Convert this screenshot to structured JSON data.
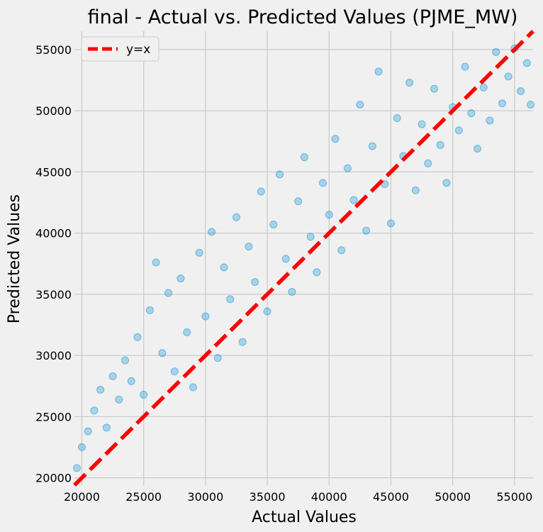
{
  "chart_data": {
    "type": "scatter",
    "title": "final - Actual vs. Predicted Values (PJME_MW)",
    "xlabel": "Actual Values",
    "ylabel": "Predicted Values",
    "xlim": [
      19400,
      56500
    ],
    "ylim": [
      19400,
      56500
    ],
    "xticks": [
      20000,
      25000,
      30000,
      35000,
      40000,
      45000,
      50000,
      55000
    ],
    "yticks": [
      20000,
      25000,
      30000,
      35000,
      40000,
      45000,
      50000,
      55000
    ],
    "grid": true,
    "legend": {
      "position": "top-left",
      "entries": [
        "y=x"
      ]
    },
    "series": [
      {
        "kind": "scatter",
        "color": "#008fd5",
        "opacity": 0.3,
        "points": [
          [
            19600,
            20800
          ],
          [
            20000,
            22500
          ],
          [
            20500,
            23800
          ],
          [
            21000,
            25500
          ],
          [
            21500,
            27200
          ],
          [
            22000,
            24100
          ],
          [
            22500,
            28300
          ],
          [
            23000,
            26400
          ],
          [
            23500,
            29600
          ],
          [
            24000,
            27900
          ],
          [
            24500,
            31500
          ],
          [
            25000,
            26800
          ],
          [
            25500,
            33700
          ],
          [
            26000,
            37600
          ],
          [
            26500,
            30200
          ],
          [
            27000,
            35100
          ],
          [
            27500,
            28700
          ],
          [
            28000,
            36300
          ],
          [
            28500,
            31900
          ],
          [
            29000,
            27400
          ],
          [
            29500,
            38400
          ],
          [
            30000,
            33200
          ],
          [
            30500,
            40100
          ],
          [
            31000,
            29800
          ],
          [
            31500,
            37200
          ],
          [
            32000,
            34600
          ],
          [
            32500,
            41300
          ],
          [
            33000,
            31100
          ],
          [
            33500,
            38900
          ],
          [
            34000,
            36000
          ],
          [
            34500,
            43400
          ],
          [
            35000,
            33600
          ],
          [
            35500,
            40700
          ],
          [
            36000,
            44800
          ],
          [
            36500,
            37900
          ],
          [
            37000,
            35200
          ],
          [
            37500,
            42600
          ],
          [
            38000,
            46200
          ],
          [
            38500,
            39700
          ],
          [
            39000,
            36800
          ],
          [
            39500,
            44100
          ],
          [
            40000,
            41500
          ],
          [
            40500,
            47700
          ],
          [
            41000,
            38600
          ],
          [
            41500,
            45300
          ],
          [
            42000,
            42700
          ],
          [
            42500,
            50500
          ],
          [
            43000,
            40200
          ],
          [
            43500,
            47100
          ],
          [
            44000,
            53200
          ],
          [
            44500,
            44000
          ],
          [
            45000,
            40800
          ],
          [
            45500,
            49400
          ],
          [
            46000,
            46300
          ],
          [
            46500,
            52300
          ],
          [
            47000,
            43500
          ],
          [
            47500,
            48900
          ],
          [
            48000,
            45700
          ],
          [
            48500,
            51800
          ],
          [
            49000,
            47200
          ],
          [
            49500,
            44100
          ],
          [
            50000,
            50300
          ],
          [
            50500,
            48400
          ],
          [
            51000,
            53600
          ],
          [
            51500,
            49800
          ],
          [
            52000,
            46900
          ],
          [
            52500,
            51900
          ],
          [
            53000,
            49200
          ],
          [
            53500,
            54800
          ],
          [
            54000,
            50600
          ],
          [
            54500,
            52800
          ],
          [
            55000,
            55100
          ],
          [
            55500,
            51600
          ],
          [
            56000,
            53900
          ],
          [
            56300,
            50500
          ]
        ]
      },
      {
        "kind": "line",
        "name": "y=x",
        "color": "#ff0000",
        "dashed": true,
        "points": [
          [
            19400,
            19400
          ],
          [
            56500,
            56500
          ]
        ]
      }
    ]
  },
  "colors": {
    "background": "#f0f0f0",
    "grid": "#cbcbcb",
    "scatter": "#008fd5",
    "line": "#ff0000"
  }
}
